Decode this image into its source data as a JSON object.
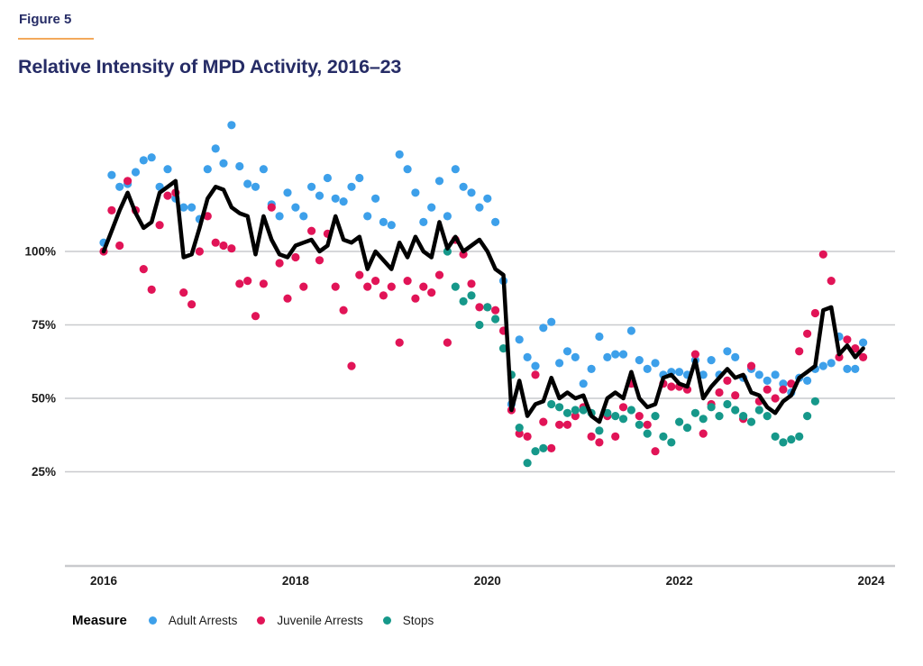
{
  "figure_label": "Figure 5",
  "title": "Relative Intensity of MPD Activity, 2016–23",
  "colors": {
    "title_navy": "#262c66",
    "rule_orange": "#f3a95c",
    "grid": "#c9cace",
    "adult": "#3da0ea",
    "juvenile": "#e11457",
    "stops": "#16988a",
    "trend": "#000000"
  },
  "legend": {
    "label": "Measure",
    "items": [
      {
        "label": "Adult Arrests"
      },
      {
        "label": "Juvenile Arrests"
      },
      {
        "label": "Stops"
      }
    ]
  },
  "chart_data": {
    "type": "scatter",
    "title": "Relative Intensity of MPD Activity, 2016–23",
    "xlabel": "",
    "ylabel": "",
    "x_start": "2016-01",
    "x_interval": "month",
    "x_axis_ticks": [
      "2016",
      "2018",
      "2020",
      "2022",
      "2024"
    ],
    "x_tick_month_indices": [
      0,
      24,
      48,
      72,
      96
    ],
    "y_axis_ticks": [
      "100%",
      "75%",
      "50%",
      "25%"
    ],
    "y_tick_values": [
      100,
      75,
      50,
      25
    ],
    "ylim": [
      20,
      148
    ],
    "grid": "horizontal-only",
    "legend_position": "bottom",
    "note_units": "percent relative intensity, monthly, values estimated from plot",
    "series": [
      {
        "name": "Adult Arrests",
        "type": "scatter",
        "color": "#3da0ea",
        "values": [
          103,
          126,
          122,
          123,
          127,
          131,
          132,
          122,
          128,
          118,
          115,
          115,
          111,
          128,
          135,
          130,
          143,
          129,
          123,
          122,
          128,
          116,
          112,
          120,
          115,
          112,
          122,
          119,
          125,
          118,
          117,
          122,
          125,
          112,
          118,
          110,
          109,
          133,
          128,
          120,
          110,
          115,
          124,
          112,
          128,
          122,
          120,
          115,
          118,
          110,
          90,
          48,
          70,
          64,
          61,
          74,
          76,
          62,
          66,
          64,
          55,
          60,
          71,
          64,
          65,
          65,
          73,
          63,
          60,
          62,
          58,
          59,
          59,
          58,
          63,
          58,
          63,
          58,
          66,
          64,
          57,
          60,
          58,
          56,
          58,
          55,
          52,
          57,
          56,
          60,
          61,
          62,
          71,
          60,
          60,
          69
        ]
      },
      {
        "name": "Juvenile Arrests",
        "type": "scatter",
        "color": "#e11457",
        "values": [
          100,
          114,
          102,
          124,
          114,
          94,
          87,
          109,
          119,
          120,
          86,
          82,
          100,
          112,
          103,
          102,
          101,
          89,
          90,
          78,
          89,
          115,
          96,
          84,
          98,
          88,
          107,
          97,
          106,
          88,
          80,
          61,
          92,
          88,
          90,
          85,
          88,
          69,
          90,
          84,
          88,
          86,
          92,
          69,
          104,
          99,
          89,
          81,
          81,
          80,
          73,
          46,
          38,
          37,
          58,
          42,
          33,
          41,
          41,
          44,
          47,
          37,
          35,
          44,
          37,
          47,
          55,
          44,
          41,
          32,
          55,
          54,
          54,
          53,
          65,
          38,
          48,
          52,
          56,
          51,
          43,
          61,
          49,
          53,
          50,
          53,
          55,
          66,
          72,
          79,
          99,
          90,
          64,
          70,
          67,
          64
        ]
      },
      {
        "name": "Stops",
        "type": "scatter",
        "color": "#16988a",
        "values": [
          null,
          null,
          null,
          null,
          null,
          null,
          null,
          null,
          null,
          null,
          null,
          null,
          null,
          null,
          null,
          null,
          null,
          null,
          null,
          null,
          null,
          null,
          null,
          null,
          null,
          null,
          null,
          null,
          null,
          null,
          null,
          null,
          null,
          null,
          null,
          null,
          null,
          null,
          null,
          null,
          null,
          null,
          null,
          100,
          88,
          83,
          85,
          75,
          81,
          77,
          67,
          58,
          40,
          28,
          32,
          33,
          48,
          47,
          45,
          46,
          46,
          45,
          39,
          45,
          44,
          43,
          46,
          41,
          38,
          44,
          37,
          35,
          42,
          40,
          45,
          43,
          47,
          44,
          48,
          46,
          44,
          42,
          46,
          44,
          37,
          35,
          36,
          37,
          44,
          49,
          null,
          null,
          null,
          null,
          null,
          null
        ]
      },
      {
        "name": "Overall trend",
        "type": "line",
        "color": "#000000",
        "values": [
          100,
          107,
          114,
          120,
          113,
          108,
          110,
          120,
          122,
          124,
          98,
          99,
          108,
          118,
          122,
          121,
          115,
          113,
          112,
          99,
          112,
          104,
          99,
          98,
          102,
          103,
          104,
          100,
          102,
          112,
          104,
          103,
          105,
          94,
          100,
          97,
          94,
          103,
          98,
          105,
          100,
          98,
          110,
          101,
          105,
          100,
          102,
          104,
          100,
          94,
          92,
          46,
          56,
          44,
          48,
          49,
          57,
          50,
          52,
          50,
          51,
          44,
          42,
          50,
          52,
          50,
          59,
          50,
          47,
          48,
          57,
          58,
          55,
          54,
          63,
          50,
          54,
          57,
          60,
          57,
          58,
          52,
          51,
          47,
          45,
          49,
          51,
          57,
          59,
          61,
          80,
          81,
          65,
          68,
          64,
          67
        ]
      }
    ]
  }
}
